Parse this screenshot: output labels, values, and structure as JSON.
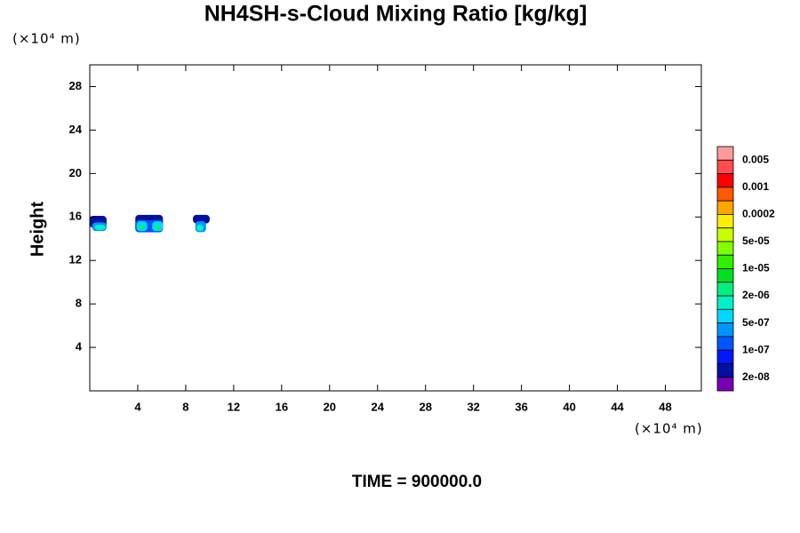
{
  "chart_data": {
    "type": "contour",
    "title": "NH4SH-s-Cloud Mixing Ratio [kg/kg]",
    "ylabel": "Height",
    "y_unit": "(×10⁴ m)",
    "x_unit": "(×10⁴ m)",
    "footer": "TIME = 900000.0",
    "xlim": [
      0,
      51
    ],
    "ylim": [
      0,
      30
    ],
    "xticks": [
      4,
      8,
      12,
      16,
      20,
      24,
      28,
      32,
      36,
      40,
      44,
      48
    ],
    "yticks": [
      4,
      8,
      12,
      16,
      20,
      24,
      28
    ],
    "colorbar": {
      "colors": [
        "#ff9a9a",
        "#ff4b4b",
        "#ff0000",
        "#ff5a00",
        "#ffa500",
        "#ffee00",
        "#c8ff00",
        "#80ff00",
        "#30f000",
        "#00e020",
        "#00f080",
        "#00f0c8",
        "#00d8ff",
        "#0096ff",
        "#0055ff",
        "#0018ff",
        "#0010a0",
        "#7800b4"
      ],
      "ticks": [
        0.005,
        0.001,
        0.0002,
        {
          "value": 5e-05,
          "label": "5e-05"
        },
        {
          "value": 1e-05,
          "label": "1e-05"
        },
        {
          "value": 2e-06,
          "label": "2e-06"
        },
        {
          "value": 5e-07,
          "label": "5e-07"
        },
        {
          "value": 1e-07,
          "label": "1e-07"
        },
        {
          "value": 2e-08,
          "label": "2e-08"
        }
      ]
    },
    "patches": [
      {
        "x": [
          0,
          1.4
        ],
        "y": [
          15.0,
          16.1
        ],
        "color": "#0010a0"
      },
      {
        "x": [
          0.2,
          1.4
        ],
        "y": [
          14.7,
          15.5
        ],
        "color": "#0096ff"
      },
      {
        "x": [
          0.4,
          1.3
        ],
        "y": [
          14.8,
          15.3
        ],
        "color": "#00f0c8"
      },
      {
        "x": [
          3.8,
          6.1
        ],
        "y": [
          14.6,
          16.2
        ],
        "color": "#0010a0"
      },
      {
        "x": [
          3.8,
          6.1
        ],
        "y": [
          14.6,
          15.7
        ],
        "color": "#0055ff"
      },
      {
        "x": [
          3.9,
          4.8
        ],
        "y": [
          14.7,
          15.6
        ],
        "color": "#00d8ff"
      },
      {
        "x": [
          5.2,
          6.1
        ],
        "y": [
          14.7,
          15.6
        ],
        "color": "#00d8ff"
      },
      {
        "x": [
          4.1,
          4.6
        ],
        "y": [
          14.8,
          15.3
        ],
        "color": "#00f080"
      },
      {
        "x": [
          5.4,
          5.9
        ],
        "y": [
          14.8,
          15.3
        ],
        "color": "#00f080"
      },
      {
        "x": [
          8.6,
          10.0
        ],
        "y": [
          15.4,
          16.2
        ],
        "color": "#0010a0"
      },
      {
        "x": [
          8.8,
          9.7
        ],
        "y": [
          14.6,
          15.6
        ],
        "color": "#0096ff"
      },
      {
        "x": [
          8.9,
          9.5
        ],
        "y": [
          14.7,
          15.3
        ],
        "color": "#00f0c8"
      }
    ]
  }
}
